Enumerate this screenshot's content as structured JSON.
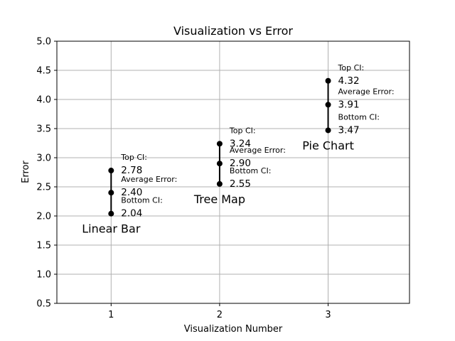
{
  "chart_data": {
    "type": "scatter",
    "title": "Visualization vs Error",
    "xlabel": "Visualization Number",
    "ylabel": "Error",
    "xlim": [
      0.5,
      3.75
    ],
    "ylim": [
      0.5,
      5.0
    ],
    "xticks": [
      1,
      2,
      3
    ],
    "yticks": [
      0.5,
      1.0,
      1.5,
      2.0,
      2.5,
      3.0,
      3.5,
      4.0,
      4.5,
      5.0
    ],
    "grid": true,
    "colors": {
      "marker": "#000000",
      "grid": "#b0b0b0"
    },
    "label_text": {
      "top": "Top CI:",
      "average": "Average Error:",
      "bottom": "Bottom CI:"
    },
    "points": [
      {
        "x": 1,
        "name": "Linear Bar",
        "top": 2.78,
        "average": 2.4,
        "bottom": 2.04,
        "top_label": "2.78",
        "average_label": "2.40",
        "bottom_label": "2.04"
      },
      {
        "x": 2,
        "name": "Tree Map",
        "top": 3.24,
        "average": 2.9,
        "bottom": 2.55,
        "top_label": "3.24",
        "average_label": "2.90",
        "bottom_label": "2.55"
      },
      {
        "x": 3,
        "name": "Pie Chart",
        "top": 4.32,
        "average": 3.91,
        "bottom": 3.47,
        "top_label": "4.32",
        "average_label": "3.91",
        "bottom_label": "3.47"
      }
    ]
  }
}
